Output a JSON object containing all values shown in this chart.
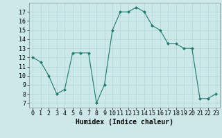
{
  "x": [
    0,
    1,
    2,
    3,
    4,
    5,
    6,
    7,
    8,
    9,
    10,
    11,
    12,
    13,
    14,
    15,
    16,
    17,
    18,
    19,
    20,
    21,
    22,
    23
  ],
  "y": [
    12,
    11.5,
    10,
    8,
    8.5,
    12.5,
    12.5,
    12.5,
    7,
    9,
    15,
    17,
    17,
    17.5,
    17,
    15.5,
    15,
    13.5,
    13.5,
    13,
    13,
    7.5,
    7.5,
    8
  ],
  "line_color": "#1a7a6e",
  "marker_color": "#1a7a6e",
  "bg_color": "#cde8e8",
  "grid_color": "#b0d8d8",
  "xlabel": "Humidex (Indice chaleur)",
  "ylim": [
    6.5,
    18.0
  ],
  "xlim": [
    -0.5,
    23.5
  ],
  "yticks": [
    7,
    8,
    9,
    10,
    11,
    12,
    13,
    14,
    15,
    16,
    17
  ],
  "xticks": [
    0,
    1,
    2,
    3,
    4,
    5,
    6,
    7,
    8,
    9,
    10,
    11,
    12,
    13,
    14,
    15,
    16,
    17,
    18,
    19,
    20,
    21,
    22,
    23
  ],
  "label_fontsize": 7,
  "tick_fontsize": 6
}
